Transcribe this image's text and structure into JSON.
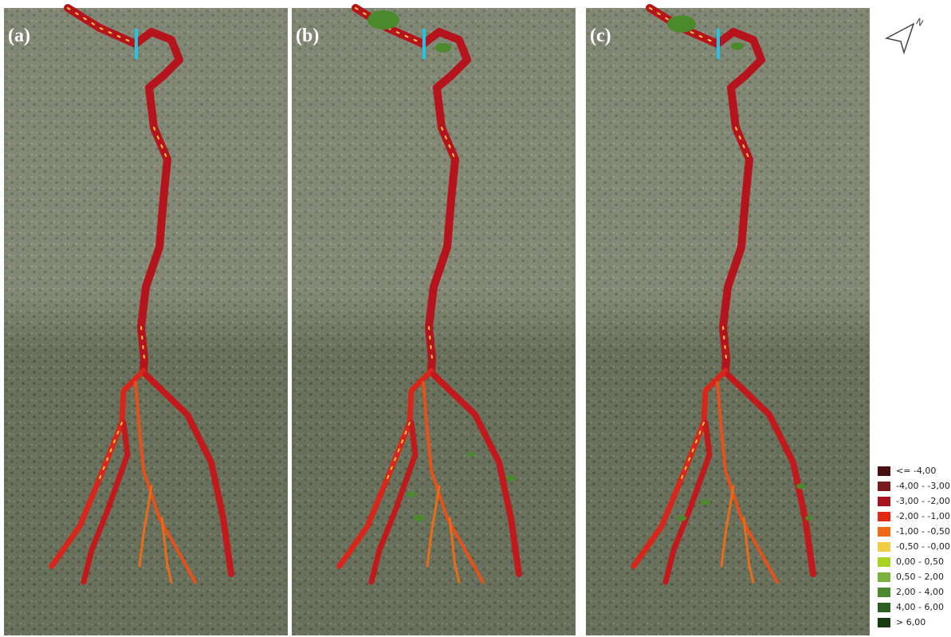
{
  "panels": [
    {
      "label": "(a)"
    },
    {
      "label": "(b)"
    },
    {
      "label": "(c)"
    }
  ],
  "north_arrow": {
    "label": "N"
  },
  "legend": {
    "items": [
      {
        "label": "<= -4,00",
        "color": "#4a0f10"
      },
      {
        "label": "-4,00 - -3,00",
        "color": "#7a1a1c"
      },
      {
        "label": "-3,00 - -2,00",
        "color": "#a8141e"
      },
      {
        "label": "-2,00 - -1,00",
        "color": "#e42a12"
      },
      {
        "label": "-1,00 - -0,50",
        "color": "#ee6a16"
      },
      {
        "label": "-0,50 - -0,00",
        "color": "#f4cc44"
      },
      {
        "label": "0,00 - 0,50",
        "color": "#a6d421"
      },
      {
        "label": "0,50 - 2,00",
        "color": "#78b13b"
      },
      {
        "label": "2,00 - 4,00",
        "color": "#4a8a2c"
      },
      {
        "label": "4,00 - 6,00",
        "color": "#2b5e20"
      },
      {
        "label": "> 6,00",
        "color": "#183a10"
      }
    ]
  }
}
